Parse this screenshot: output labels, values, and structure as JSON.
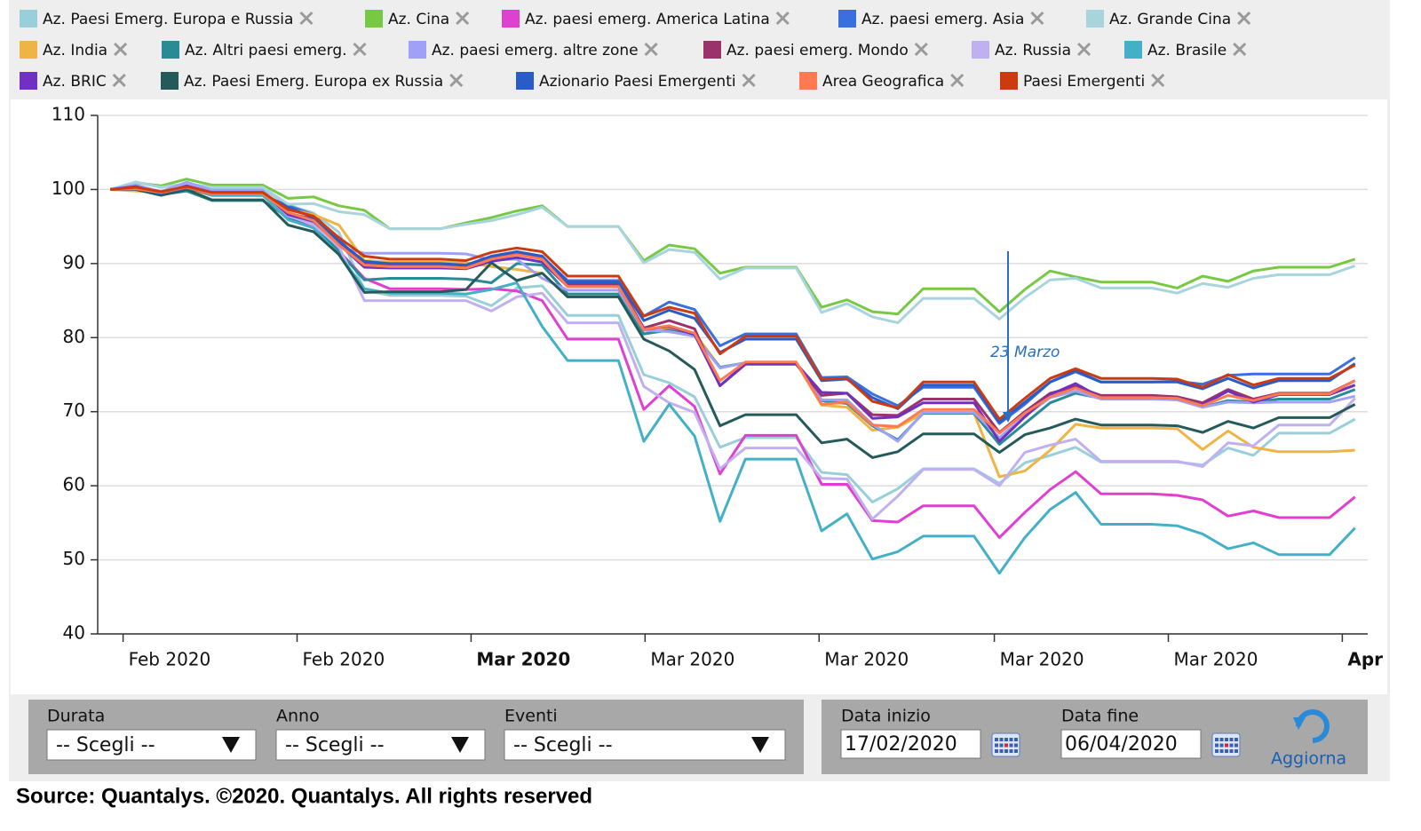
{
  "chart_data": {
    "type": "line",
    "xlim": [
      -0.5,
      49.5
    ],
    "xticks": [
      {
        "value": 0.5,
        "label": "Feb 2020"
      },
      {
        "value": 7.35,
        "label": "Feb 2020"
      },
      {
        "value": 14.2,
        "label": "Mar 2020",
        "bold": true
      },
      {
        "value": 21.05,
        "label": "Mar 2020"
      },
      {
        "value": 27.9,
        "label": "Mar 2020"
      },
      {
        "value": 34.8,
        "label": "Mar 2020"
      },
      {
        "value": 41.65,
        "label": "Mar 2020"
      },
      {
        "value": 48.5,
        "label": "Apr",
        "bold": true
      }
    ],
    "ylim": [
      40,
      110
    ],
    "yticks": [
      40,
      50,
      60,
      70,
      80,
      90,
      100,
      110
    ],
    "grid": true,
    "annotations": [
      {
        "text": "23 Marzo"
      }
    ],
    "series": [
      {
        "name": "Az. Paesi Emerg. Europa e Russia",
        "color": "#99cfd9",
        "values": [
          100,
          101.0,
          100.3,
          100.7,
          100.0,
          100.0,
          100.0,
          97.9,
          96.8,
          94.2,
          86.4,
          85.7,
          85.7,
          85.7,
          85.6,
          84.3,
          86.7,
          87.0,
          83.0,
          83.0,
          83.0,
          75.0,
          73.9,
          72.0,
          65.2,
          66.5,
          66.5,
          66.5,
          61.8,
          61.5,
          57.8,
          59.6,
          62.3,
          62.3,
          62.3,
          60.3,
          63.1,
          64.1,
          65.2,
          63.2,
          63.2,
          63.2,
          63.2,
          62.8,
          65.1,
          64.1,
          67.1,
          67.1,
          67.1,
          69.0
        ]
      },
      {
        "name": "Az. Cina",
        "color": "#77c944",
        "values": [
          100,
          100.9,
          100.5,
          101.4,
          100.6,
          100.6,
          100.6,
          98.8,
          99.0,
          97.8,
          97.2,
          94.7,
          94.7,
          94.7,
          95.5,
          96.2,
          97.1,
          97.8,
          95.0,
          95.0,
          95.0,
          90.4,
          92.5,
          92.0,
          88.7,
          89.5,
          89.5,
          89.5,
          84.1,
          85.1,
          83.5,
          83.2,
          86.6,
          86.6,
          86.6,
          83.5,
          86.5,
          89.0,
          88.2,
          87.5,
          87.5,
          87.5,
          86.7,
          88.3,
          87.6,
          89.0,
          89.5,
          89.5,
          89.5,
          90.6
        ]
      },
      {
        "name": "Az. paesi emerg. America Latina",
        "color": "#e040d0",
        "values": [
          100,
          100.2,
          99.5,
          100.6,
          99.4,
          99.4,
          99.4,
          96.1,
          95.0,
          91.7,
          88.0,
          86.6,
          86.6,
          86.6,
          86.5,
          86.6,
          86.3,
          85.0,
          79.8,
          79.8,
          79.8,
          70.3,
          73.5,
          70.7,
          61.6,
          66.8,
          66.8,
          66.8,
          60.2,
          60.2,
          55.3,
          55.1,
          57.3,
          57.3,
          57.3,
          53.0,
          56.4,
          59.5,
          61.9,
          58.9,
          58.9,
          58.9,
          58.7,
          58.1,
          55.9,
          56.6,
          55.7,
          55.7,
          55.7,
          58.5
        ]
      },
      {
        "name": "Az. paesi emerg. Asia",
        "color": "#3a6fe0",
        "values": [
          100,
          100.3,
          99.4,
          100.1,
          99.2,
          99.2,
          99.2,
          97.8,
          96.6,
          93.2,
          89.9,
          89.8,
          89.8,
          89.8,
          89.6,
          90.8,
          91.5,
          90.9,
          87.7,
          87.7,
          87.7,
          82.9,
          84.8,
          83.8,
          78.9,
          80.5,
          80.5,
          80.5,
          74.6,
          74.7,
          72.4,
          70.8,
          73.3,
          73.3,
          73.3,
          68.4,
          71.0,
          74.0,
          75.4,
          74.0,
          74.0,
          74.0,
          74.1,
          73.7,
          74.9,
          75.1,
          75.1,
          75.1,
          75.1,
          77.3
        ]
      },
      {
        "name": "Az. Grande Cina",
        "color": "#a8d4de",
        "values": [
          100,
          101.0,
          100.3,
          100.8,
          100.3,
          100.3,
          100.3,
          98.0,
          98.1,
          97.0,
          96.6,
          94.7,
          94.7,
          94.7,
          95.3,
          95.8,
          96.6,
          97.6,
          95.0,
          95.0,
          95.0,
          90.1,
          91.9,
          91.5,
          87.9,
          89.4,
          89.4,
          89.4,
          83.4,
          84.6,
          82.8,
          82.0,
          85.3,
          85.3,
          85.3,
          82.5,
          85.4,
          87.8,
          88.0,
          86.7,
          86.7,
          86.7,
          86.0,
          87.3,
          86.8,
          88.0,
          88.5,
          88.5,
          88.5,
          89.7
        ]
      },
      {
        "name": "Az. India",
        "color": "#f0b445",
        "values": [
          100,
          99.8,
          99.6,
          99.9,
          99.3,
          99.3,
          99.3,
          97.4,
          96.6,
          95.2,
          90.4,
          90.2,
          90.2,
          90.2,
          90.1,
          89.6,
          89.2,
          88.7,
          85.5,
          85.5,
          85.5,
          80.5,
          81.2,
          80.6,
          76.0,
          76.6,
          76.6,
          76.6,
          70.9,
          70.6,
          67.5,
          67.9,
          69.8,
          69.8,
          69.8,
          61.2,
          62.0,
          64.8,
          68.3,
          67.8,
          67.8,
          67.8,
          67.7,
          64.9,
          67.4,
          65.2,
          64.6,
          64.6,
          64.6,
          64.8
        ]
      },
      {
        "name": "Az. Altri paesi emerg.",
        "color": "#2a8a96",
        "values": [
          100,
          100.1,
          99.3,
          99.8,
          98.5,
          98.5,
          98.5,
          96.2,
          95.3,
          91.6,
          87.8,
          88.0,
          88.0,
          88.0,
          87.9,
          87.4,
          90.0,
          89.8,
          85.9,
          85.9,
          85.9,
          80.5,
          81.0,
          80.2,
          76.0,
          76.6,
          76.6,
          76.6,
          71.5,
          71.1,
          68.1,
          66.2,
          69.8,
          69.8,
          69.8,
          65.6,
          68.4,
          71.2,
          72.5,
          71.8,
          71.8,
          71.8,
          71.7,
          70.6,
          71.5,
          71.3,
          71.7,
          71.7,
          71.7,
          73.0
        ]
      },
      {
        "name": "Az. paesi emerg. altre zone",
        "color": "#a0a0f8",
        "values": [
          100,
          100.6,
          99.7,
          101.0,
          99.9,
          99.9,
          99.9,
          96.4,
          95.4,
          92.2,
          91.4,
          91.4,
          91.4,
          91.4,
          91.3,
          90.5,
          90.6,
          88.0,
          86.4,
          86.4,
          86.4,
          81.0,
          80.8,
          80.2,
          75.9,
          76.6,
          76.6,
          76.6,
          71.6,
          71.6,
          68.3,
          66.0,
          69.9,
          69.9,
          69.9,
          66.5,
          69.4,
          71.9,
          72.8,
          71.7,
          71.7,
          71.7,
          71.6,
          70.6,
          71.3,
          71.2,
          71.3,
          71.3,
          71.3,
          72.1
        ]
      },
      {
        "name": "Az. paesi emerg. Mondo",
        "color": "#99336a",
        "values": [
          100,
          100.2,
          99.5,
          100.3,
          99.3,
          99.3,
          99.3,
          96.8,
          96.0,
          92.8,
          90.0,
          89.8,
          89.8,
          89.8,
          89.6,
          90.8,
          91.5,
          90.9,
          87.2,
          87.2,
          87.2,
          81.3,
          82.3,
          81.2,
          73.5,
          76.4,
          76.4,
          76.4,
          72.2,
          72.5,
          69.6,
          69.5,
          71.7,
          71.7,
          71.7,
          67.2,
          70.0,
          72.5,
          73.4,
          72.2,
          72.2,
          72.2,
          72.0,
          71.2,
          73.0,
          71.7,
          72.5,
          72.5,
          72.5,
          74.2
        ]
      },
      {
        "name": "Az. Russia",
        "color": "#c0b0f0",
        "values": [
          100,
          100.3,
          99.6,
          100.6,
          99.5,
          99.5,
          99.5,
          96.5,
          95.2,
          92.3,
          85.0,
          85.0,
          85.0,
          85.0,
          85.0,
          83.6,
          85.5,
          86.0,
          82.0,
          82.0,
          82.0,
          73.4,
          71.2,
          69.9,
          62.3,
          65.1,
          65.1,
          65.1,
          61.0,
          60.9,
          55.5,
          58.6,
          62.2,
          62.2,
          62.2,
          60.0,
          64.5,
          65.5,
          66.3,
          63.3,
          63.3,
          63.3,
          63.3,
          62.6,
          65.8,
          65.4,
          68.2,
          68.2,
          68.2,
          71.8
        ]
      },
      {
        "name": "Az. Brasile",
        "color": "#44b0c8",
        "values": [
          100,
          100.2,
          99.5,
          100.4,
          99.2,
          99.2,
          99.2,
          95.9,
          94.8,
          91.2,
          86.6,
          86.0,
          86.0,
          86.0,
          85.9,
          86.5,
          87.4,
          81.5,
          76.9,
          76.9,
          76.9,
          66.0,
          71.0,
          66.7,
          55.2,
          63.6,
          63.6,
          63.6,
          53.9,
          56.2,
          50.1,
          51.1,
          53.2,
          53.2,
          53.2,
          48.2,
          53.0,
          56.8,
          59.1,
          54.8,
          54.8,
          54.8,
          54.6,
          53.5,
          51.5,
          52.3,
          50.7,
          50.7,
          50.7,
          54.3
        ]
      },
      {
        "name": "Az. BRIC",
        "color": "#7030c0",
        "values": [
          100,
          100.4,
          99.5,
          100.5,
          99.6,
          99.6,
          99.6,
          96.6,
          95.7,
          92.6,
          89.5,
          89.4,
          89.4,
          89.4,
          89.3,
          90.3,
          90.8,
          90.2,
          86.9,
          86.9,
          86.9,
          81.1,
          81.5,
          80.4,
          73.5,
          76.5,
          76.5,
          76.5,
          72.6,
          72.5,
          69.1,
          69.3,
          71.2,
          71.2,
          71.2,
          66.0,
          69.3,
          72.3,
          73.8,
          71.9,
          71.9,
          71.9,
          71.8,
          70.9,
          72.8,
          71.3,
          72.3,
          72.3,
          72.3,
          73.6
        ]
      },
      {
        "name": "Az. Paesi Emerg. Europa ex Russia",
        "color": "#255a5a",
        "values": [
          100,
          100.0,
          99.2,
          100.0,
          98.6,
          98.6,
          98.6,
          95.2,
          94.3,
          91.2,
          86.1,
          86.2,
          86.2,
          86.2,
          86.5,
          90.1,
          87.7,
          88.7,
          85.5,
          85.5,
          85.5,
          79.8,
          78.2,
          75.7,
          68.1,
          69.6,
          69.6,
          69.6,
          65.8,
          66.3,
          63.8,
          64.6,
          67.0,
          67.0,
          67.0,
          64.5,
          66.9,
          67.8,
          69.0,
          68.2,
          68.2,
          68.2,
          68.1,
          67.2,
          68.7,
          67.8,
          69.2,
          69.2,
          69.2,
          71.0
        ]
      },
      {
        "name": "Azionario Paesi Emergenti",
        "color": "#2a5cc8",
        "values": [
          100,
          100.2,
          99.5,
          100.2,
          99.4,
          99.4,
          99.4,
          97.6,
          96.2,
          93.0,
          90.3,
          90.0,
          90.0,
          90.0,
          89.8,
          91.0,
          91.6,
          91.0,
          87.5,
          87.5,
          87.5,
          82.3,
          83.7,
          82.6,
          78.0,
          79.8,
          79.8,
          79.8,
          74.2,
          74.4,
          71.9,
          70.4,
          73.6,
          73.6,
          73.6,
          68.6,
          71.3,
          74.0,
          75.5,
          74.0,
          74.0,
          74.0,
          74.0,
          73.1,
          74.5,
          73.2,
          74.2,
          74.2,
          74.2,
          76.5
        ]
      },
      {
        "name": "Area Geografica",
        "color": "#ff7a50",
        "values": [
          100,
          100.1,
          99.6,
          100.3,
          99.4,
          99.4,
          99.4,
          96.9,
          95.8,
          92.5,
          89.8,
          89.6,
          89.6,
          89.6,
          89.4,
          90.6,
          91.2,
          90.6,
          86.9,
          86.9,
          86.9,
          81.1,
          81.6,
          80.6,
          74.2,
          76.7,
          76.7,
          76.7,
          71.0,
          71.3,
          68.2,
          68.0,
          70.3,
          70.3,
          70.3,
          67.1,
          69.8,
          72.0,
          73.2,
          71.9,
          71.9,
          71.9,
          71.8,
          70.8,
          72.2,
          71.5,
          72.4,
          72.4,
          72.4,
          74.2
        ]
      },
      {
        "name": "Paesi Emergenti",
        "color": "#cc3a10",
        "values": [
          100,
          100.3,
          99.7,
          100.4,
          99.6,
          99.6,
          99.6,
          97.3,
          96.4,
          93.5,
          91.0,
          90.6,
          90.6,
          90.6,
          90.4,
          91.5,
          92.1,
          91.6,
          88.3,
          88.3,
          88.3,
          82.9,
          84.1,
          83.3,
          77.8,
          80.2,
          80.2,
          80.2,
          74.4,
          74.5,
          71.4,
          70.5,
          74.0,
          74.0,
          74.0,
          69.0,
          71.8,
          74.5,
          75.8,
          74.5,
          74.5,
          74.5,
          74.4,
          73.3,
          75.0,
          73.6,
          74.5,
          74.5,
          74.5,
          76.3
        ]
      }
    ]
  },
  "filters": [
    {
      "label": "Durata",
      "value": "-- Scegli --"
    },
    {
      "label": "Anno",
      "value": "-- Scegli --"
    },
    {
      "label": "Eventi",
      "value": "-- Scegli --"
    }
  ],
  "dates": [
    {
      "label": "Data inizio",
      "value": "17/02/2020"
    },
    {
      "label": "Data fine",
      "value": "06/04/2020"
    }
  ],
  "update_button": "Aggiorna",
  "source": "Source: Quantalys. ©2020. Quantalys. All rights reserved"
}
